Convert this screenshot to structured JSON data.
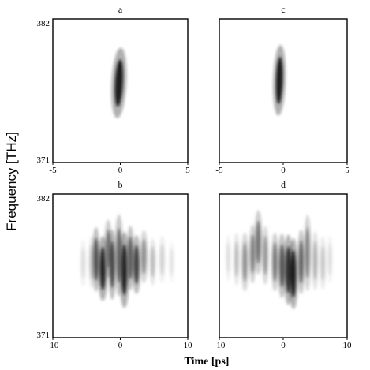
{
  "chart_data": {
    "type": "heatmap",
    "xlabel": "Time [ps]",
    "ylabel": "Frequency [THz]",
    "colormap": "white-to-black (grayscale intensity)",
    "panels": [
      {
        "id": "a",
        "title": "a",
        "xlim": [
          -5,
          5
        ],
        "ylim": [
          371,
          382
        ],
        "xticks": [
          "-5",
          "0",
          "5"
        ],
        "yticks": [
          "382",
          "371"
        ],
        "show_yticks": true,
        "blobs": [
          {
            "t": -0.1,
            "f": 377.1,
            "st": 0.18,
            "sf": 1.2,
            "amp": 1.0,
            "skew": 0.05
          }
        ]
      },
      {
        "id": "c",
        "title": "c",
        "xlim": [
          -5,
          5
        ],
        "ylim": [
          371,
          382
        ],
        "xticks": [
          "-5",
          "0",
          "5"
        ],
        "yticks": [],
        "show_yticks": false,
        "blobs": [
          {
            "t": -0.3,
            "f": 377.3,
            "st": 0.16,
            "sf": 1.2,
            "amp": 1.0,
            "skew": 0.03
          }
        ]
      },
      {
        "id": "b",
        "title": "b",
        "xlim": [
          -10,
          10
        ],
        "ylim": [
          371,
          382
        ],
        "xticks": [
          "-10",
          "0",
          "10"
        ],
        "yticks": [
          "382",
          "371"
        ],
        "show_yticks": true,
        "blobs": [
          {
            "t": -5.5,
            "f": 376.7,
            "st": 0.18,
            "sf": 0.8,
            "amp": 0.15,
            "skew": 0
          },
          {
            "t": -4.2,
            "f": 376.8,
            "st": 0.18,
            "sf": 0.9,
            "amp": 0.3,
            "skew": 0
          },
          {
            "t": -3.6,
            "f": 377.0,
            "st": 0.2,
            "sf": 1.1,
            "amp": 0.75,
            "skew": 0
          },
          {
            "t": -2.6,
            "f": 376.3,
            "st": 0.25,
            "sf": 1.1,
            "amp": 0.95,
            "skew": 0
          },
          {
            "t": -1.8,
            "f": 377.8,
            "st": 0.2,
            "sf": 1.0,
            "amp": 0.6,
            "skew": 0
          },
          {
            "t": -1.2,
            "f": 376.6,
            "st": 0.2,
            "sf": 1.2,
            "amp": 0.8,
            "skew": 0
          },
          {
            "t": -0.2,
            "f": 377.3,
            "st": 0.22,
            "sf": 1.4,
            "amp": 0.65,
            "skew": 0
          },
          {
            "t": 0.6,
            "f": 376.2,
            "st": 0.25,
            "sf": 1.3,
            "amp": 0.95,
            "skew": 0
          },
          {
            "t": 1.5,
            "f": 377.1,
            "st": 0.2,
            "sf": 1.1,
            "amp": 0.7,
            "skew": 0
          },
          {
            "t": 2.4,
            "f": 376.6,
            "st": 0.22,
            "sf": 1.0,
            "amp": 0.85,
            "skew": 0
          },
          {
            "t": 3.5,
            "f": 377.2,
            "st": 0.2,
            "sf": 0.9,
            "amp": 0.5,
            "skew": 0
          },
          {
            "t": 4.8,
            "f": 376.8,
            "st": 0.18,
            "sf": 0.8,
            "amp": 0.3,
            "skew": 0
          },
          {
            "t": 6.2,
            "f": 377.0,
            "st": 0.18,
            "sf": 0.8,
            "amp": 0.2,
            "skew": 0
          },
          {
            "t": 7.6,
            "f": 376.8,
            "st": 0.16,
            "sf": 0.7,
            "amp": 0.12,
            "skew": 0
          }
        ]
      },
      {
        "id": "d",
        "title": "d",
        "xlim": [
          -10,
          10
        ],
        "ylim": [
          371,
          382
        ],
        "xticks": [
          "-10",
          "0",
          "10"
        ],
        "yticks": [],
        "show_yticks": false,
        "blobs": [
          {
            "t": -8.6,
            "f": 377.1,
            "st": 0.16,
            "sf": 0.8,
            "amp": 0.15,
            "skew": 0
          },
          {
            "t": -7.3,
            "f": 377.0,
            "st": 0.18,
            "sf": 0.9,
            "amp": 0.3,
            "skew": 0
          },
          {
            "t": -6.0,
            "f": 376.8,
            "st": 0.2,
            "sf": 1.0,
            "amp": 0.5,
            "skew": 0
          },
          {
            "t": -4.8,
            "f": 377.4,
            "st": 0.2,
            "sf": 1.0,
            "amp": 0.55,
            "skew": 0
          },
          {
            "t": -3.9,
            "f": 378.3,
            "st": 0.22,
            "sf": 1.1,
            "amp": 0.6,
            "skew": 0
          },
          {
            "t": -2.8,
            "f": 377.3,
            "st": 0.2,
            "sf": 1.0,
            "amp": 0.45,
            "skew": 0
          },
          {
            "t": -1.3,
            "f": 376.8,
            "st": 0.2,
            "sf": 1.0,
            "amp": 0.6,
            "skew": 0
          },
          {
            "t": -0.2,
            "f": 376.5,
            "st": 0.22,
            "sf": 1.1,
            "amp": 0.75,
            "skew": 0
          },
          {
            "t": 0.8,
            "f": 376.2,
            "st": 0.25,
            "sf": 1.2,
            "amp": 0.9,
            "skew": 0
          },
          {
            "t": 1.6,
            "f": 375.9,
            "st": 0.25,
            "sf": 1.2,
            "amp": 1.0,
            "skew": 0
          },
          {
            "t": 2.8,
            "f": 376.8,
            "st": 0.2,
            "sf": 1.1,
            "amp": 0.7,
            "skew": 0
          },
          {
            "t": 3.8,
            "f": 377.5,
            "st": 0.2,
            "sf": 1.3,
            "amp": 0.55,
            "skew": 0
          },
          {
            "t": 5.0,
            "f": 376.9,
            "st": 0.18,
            "sf": 1.0,
            "amp": 0.35,
            "skew": 0
          },
          {
            "t": 6.2,
            "f": 376.7,
            "st": 0.18,
            "sf": 0.9,
            "amp": 0.25,
            "skew": 0
          },
          {
            "t": 7.3,
            "f": 377.0,
            "st": 0.16,
            "sf": 0.8,
            "amp": 0.15,
            "skew": 0
          }
        ]
      }
    ]
  }
}
